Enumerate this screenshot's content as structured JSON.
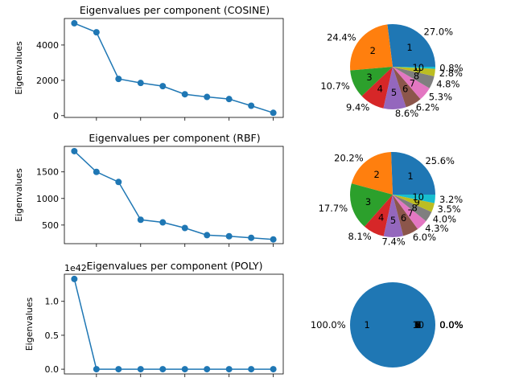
{
  "colors": {
    "line": "#1f77b4",
    "pie": [
      "#1f77b4",
      "#ff7f0e",
      "#2ca02c",
      "#d62728",
      "#9467bd",
      "#8c564b",
      "#e377c2",
      "#7f7f7f",
      "#bcbd22",
      "#17becf"
    ]
  },
  "chart_data": [
    {
      "type": "line",
      "title": "Eigenvalues per component (COSINE)",
      "ylabel": "Eigenvalues",
      "x": [
        1,
        2,
        3,
        4,
        5,
        6,
        7,
        8,
        9,
        10
      ],
      "values": [
        5230,
        4720,
        2080,
        1850,
        1670,
        1210,
        1060,
        940,
        560,
        160
      ],
      "ylim": [
        -100,
        5500
      ],
      "yticks": [
        0,
        2000,
        4000
      ],
      "ytick_labels": [
        "0",
        "2000",
        "4000"
      ],
      "xticks": [
        2,
        4,
        6,
        8,
        10
      ]
    },
    {
      "type": "pie",
      "labels": [
        "1",
        "2",
        "3",
        "4",
        "5",
        "6",
        "7",
        "8",
        "9",
        "10"
      ],
      "values": [
        27.0,
        24.4,
        10.7,
        9.4,
        8.6,
        6.2,
        5.3,
        4.8,
        2.8,
        0.8
      ],
      "pct_labels": [
        "27.0%",
        "24.4%",
        "10.7%",
        "9.4%",
        "8.6%",
        "6.2%",
        "5.3%",
        "4.8%",
        "2.8%",
        "0.8%"
      ]
    },
    {
      "type": "line",
      "title": "Eigenvalues per component (RBF)",
      "ylabel": "Eigenvalues",
      "x": [
        1,
        2,
        3,
        4,
        5,
        6,
        7,
        8,
        9,
        10
      ],
      "values": [
        1890,
        1500,
        1310,
        600,
        550,
        445,
        310,
        290,
        260,
        230
      ],
      "ylim": [
        150,
        1980
      ],
      "yticks": [
        500,
        1000,
        1500
      ],
      "ytick_labels": [
        "500",
        "1000",
        "1500"
      ],
      "xticks": [
        2,
        4,
        6,
        8,
        10
      ]
    },
    {
      "type": "pie",
      "labels": [
        "1",
        "2",
        "3",
        "4",
        "5",
        "6",
        "7",
        "8",
        "9",
        "10"
      ],
      "values": [
        25.6,
        20.2,
        17.7,
        8.1,
        7.4,
        6.0,
        4.3,
        4.0,
        3.5,
        3.2
      ],
      "pct_labels": [
        "25.6%",
        "20.2%",
        "17.7%",
        "8.1%",
        "7.4%",
        "6.0%",
        "4.3%",
        "4.0%",
        "3.5%",
        "3.2%"
      ]
    },
    {
      "type": "line",
      "title": "Eigenvalues per component (POLY)",
      "ylabel": "Eigenvalues",
      "offset_label": "1e42",
      "x": [
        1,
        2,
        3,
        4,
        5,
        6,
        7,
        8,
        9,
        10
      ],
      "values": [
        1.33,
        0,
        0,
        0,
        0,
        0,
        0,
        0,
        0,
        0
      ],
      "ylim": [
        -0.07,
        1.4
      ],
      "yticks": [
        0.0,
        0.5,
        1.0
      ],
      "ytick_labels": [
        "0.0",
        "0.5",
        "1.0"
      ],
      "xticks": [
        2,
        4,
        6,
        8,
        10
      ]
    },
    {
      "type": "pie",
      "labels": [
        "1",
        "2",
        "3",
        "4",
        "5",
        "6",
        "7",
        "8",
        "9",
        "10"
      ],
      "values": [
        100.0,
        0,
        0,
        0,
        0,
        0,
        0,
        0,
        0,
        0
      ],
      "pct_labels": [
        "100.0%",
        "0.0%",
        "0.0%",
        "0.0%",
        "0.0%",
        "0.0%",
        "0.0%",
        "0.0%",
        "0.0%",
        "0.0%"
      ]
    }
  ]
}
